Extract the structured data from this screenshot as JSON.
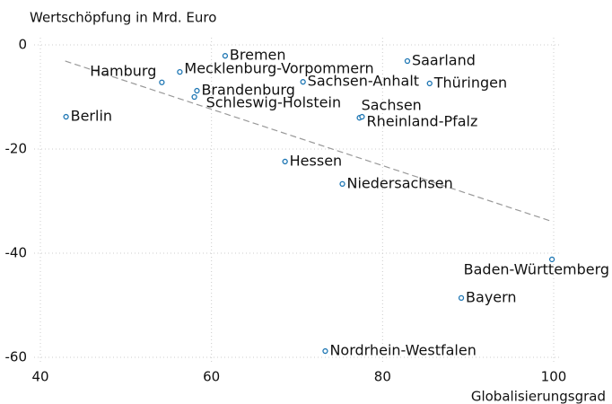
{
  "chart_data": {
    "type": "scatter",
    "y_label": "Wertschöpfung in Mrd. Euro",
    "x_label": "Globalisierungsgrad",
    "labels": [
      "Berlin",
      "Hamburg",
      "Mecklenburg-Vorpommern",
      "Bremen",
      "Brandenburg",
      "Schleswig-Holstein",
      "Sachsen-Anhalt",
      "Saarland",
      "Thüringen",
      "Sachsen",
      "Rheinland-Pfalz",
      "Hessen",
      "Niedersachsen",
      "Baden-Württemberg",
      "Bayern",
      "Nordrhein-Westfalen"
    ],
    "x": [
      43.0,
      54.2,
      56.3,
      61.6,
      58.3,
      58.0,
      70.7,
      82.9,
      85.5,
      77.3,
      77.6,
      68.6,
      75.3,
      99.8,
      89.2,
      73.3
    ],
    "y": [
      -13.8,
      -7.2,
      -5.2,
      -2.1,
      -8.8,
      -10.0,
      -7.1,
      -3.1,
      -7.4,
      -14.0,
      -13.8,
      -22.4,
      -26.7,
      -41.2,
      -48.6,
      -58.8
    ],
    "color": "#1f77b4",
    "trend": {
      "x": [
        42.9,
        99.8
      ],
      "y": [
        -3.1,
        -33.9
      ]
    },
    "xlim": [
      40,
      100
    ],
    "ylim": [
      -60,
      0
    ],
    "xticks": [
      40,
      60,
      80,
      100
    ],
    "yticks": [
      -60,
      -40,
      -20,
      0
    ],
    "grid": true
  }
}
